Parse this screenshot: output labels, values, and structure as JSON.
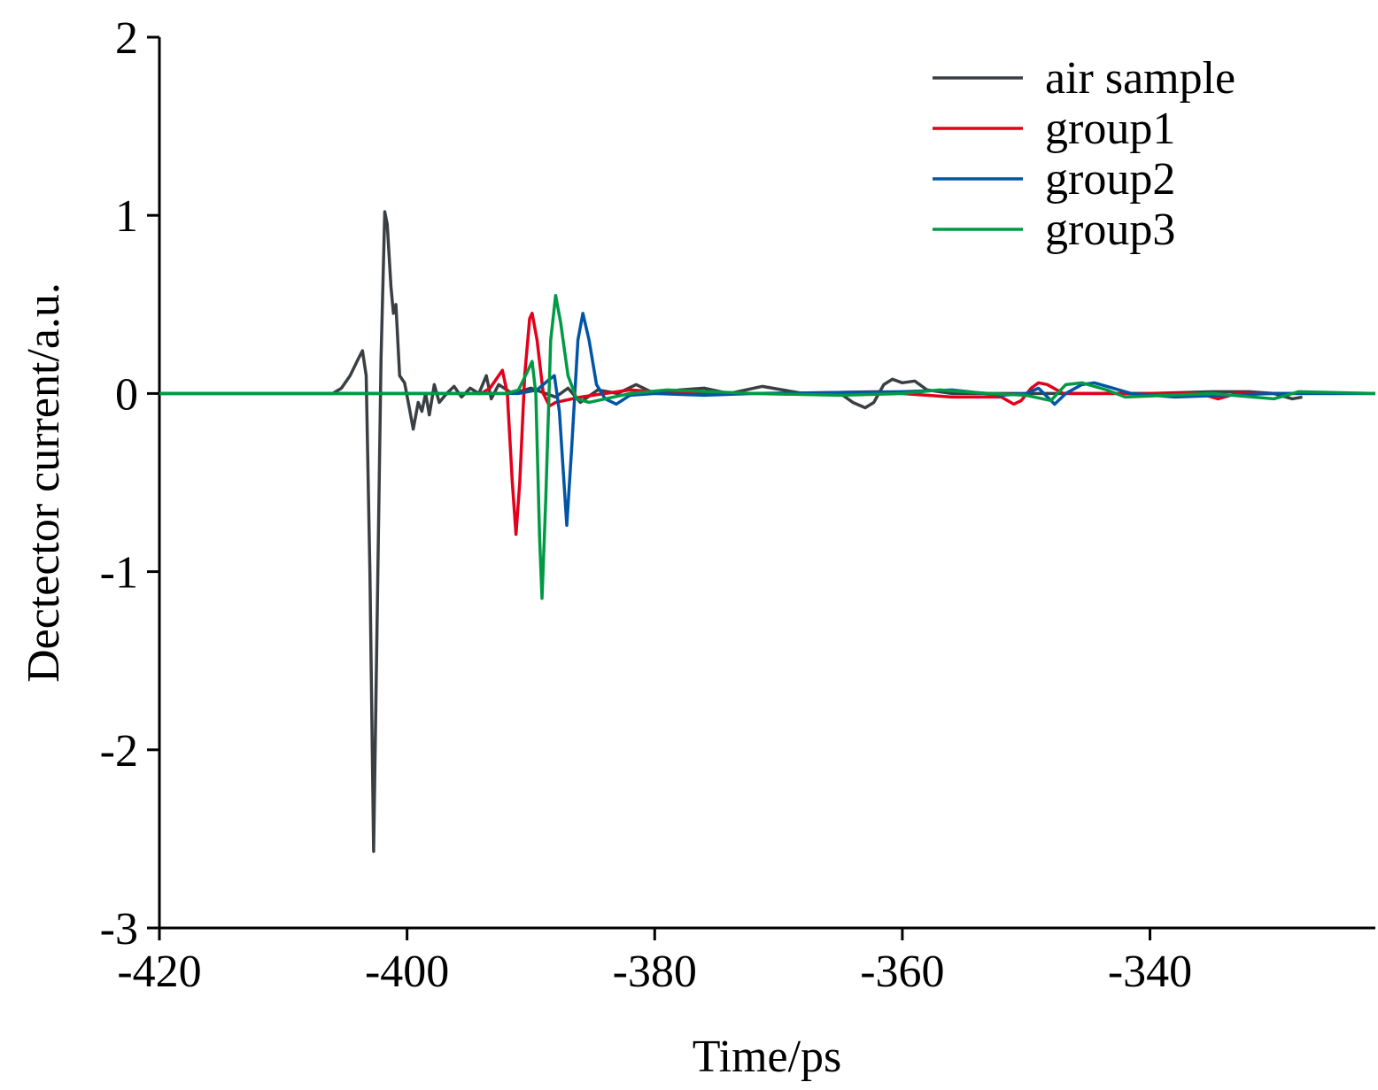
{
  "chart_data": {
    "type": "line",
    "xlabel": "Time/ps",
    "ylabel": "Dectector current/a.u.",
    "xlim": [
      -420,
      -321.8
    ],
    "xticks": [
      -420,
      -400,
      -380,
      -360,
      -340
    ],
    "ylim": [
      -3,
      2
    ],
    "yticks": [
      -3,
      -2,
      -1,
      0,
      1,
      2
    ],
    "legend": "upper right",
    "series": [
      {
        "name": "air sample",
        "color": "#3a3f44",
        "x": [
          -420,
          -406,
          -405.3,
          -404.6,
          -403.9,
          -403.6,
          -403.3,
          -403.0,
          -402.7,
          -402.4,
          -402.1,
          -401.8,
          -401.6,
          -401.3,
          -401.1,
          -400.9,
          -400.6,
          -400.2,
          -399.9,
          -399.5,
          -399.1,
          -398.8,
          -398.5,
          -398.2,
          -397.8,
          -397.4,
          -396.8,
          -396.2,
          -395.6,
          -394.9,
          -394.2,
          -393.6,
          -393.2,
          -392.6,
          -391.5,
          -390,
          -388,
          -387,
          -386,
          -384.6,
          -383,
          -381.5,
          -380,
          -378,
          -376,
          -374,
          -371.3,
          -368,
          -365,
          -364,
          -363,
          -362.3,
          -361.5,
          -360.8,
          -360,
          -359,
          -358,
          -356,
          -350,
          -345,
          -340,
          -335,
          -332,
          -330,
          -328.5,
          -327.7
        ],
        "values": [
          0,
          0,
          0.03,
          0.1,
          0.2,
          0.24,
          0.1,
          -1.0,
          -2.57,
          -1.2,
          0.2,
          1.02,
          0.95,
          0.6,
          0.45,
          0.5,
          0.1,
          0.06,
          -0.05,
          -0.2,
          -0.05,
          -0.1,
          0.0,
          -0.12,
          0.05,
          -0.05,
          0.0,
          0.04,
          -0.02,
          0.03,
          0.0,
          0.1,
          -0.03,
          0.05,
          0.0,
          0.03,
          -0.02,
          0.03,
          -0.05,
          0.02,
          0.0,
          0.05,
          0.0,
          0.02,
          0.03,
          0.0,
          0.04,
          0.0,
          0.0,
          -0.05,
          -0.08,
          -0.05,
          0.05,
          0.08,
          0.06,
          0.07,
          0.02,
          0.0,
          0.0,
          0.0,
          0.0,
          0.01,
          0.01,
          0.0,
          -0.03,
          -0.02
        ]
      },
      {
        "name": "group1",
        "color": "#e2001a",
        "x": [
          -420,
          -394,
          -393.3,
          -392.6,
          -392.3,
          -391.9,
          -391.5,
          -391.2,
          -390.9,
          -390.5,
          -390.1,
          -389.9,
          -389.5,
          -389.0,
          -388.5,
          -388,
          -386,
          -384,
          -382,
          -378,
          -370,
          -362,
          -356,
          -352,
          -351,
          -350.4,
          -349.6,
          -349,
          -348.3,
          -347,
          -343,
          -336,
          -334.5,
          -333,
          -321.8
        ],
        "values": [
          0,
          0,
          0.03,
          0.1,
          0.13,
          0.0,
          -0.5,
          -0.79,
          -0.5,
          0.1,
          0.42,
          0.45,
          0.3,
          0.0,
          -0.07,
          -0.05,
          -0.02,
          0.0,
          0.02,
          0.0,
          0.0,
          0.01,
          -0.02,
          -0.02,
          -0.06,
          -0.04,
          0.03,
          0.06,
          0.05,
          0.0,
          0.0,
          0.0,
          -0.03,
          0.0,
          0
        ]
      },
      {
        "name": "group2",
        "color": "#0055a5",
        "x": [
          -420,
          -391,
          -389.5,
          -388.5,
          -388.1,
          -387.7,
          -387.1,
          -386.7,
          -386.2,
          -385.8,
          -385.3,
          -384.7,
          -384,
          -383.1,
          -382,
          -380,
          -376,
          -372,
          -360,
          -356,
          -352,
          -350,
          -349,
          -347.7,
          -346.8,
          -345.5,
          -344.5,
          -343,
          -341.5,
          -338,
          -330,
          -321.8
        ],
        "values": [
          0,
          0,
          0.02,
          0.08,
          0.1,
          -0.1,
          -0.74,
          -0.3,
          0.3,
          0.45,
          0.3,
          0.05,
          -0.03,
          -0.06,
          -0.01,
          0.0,
          -0.01,
          0.0,
          0.01,
          0.02,
          -0.01,
          0.0,
          0.03,
          -0.06,
          0.0,
          0.05,
          0.06,
          0.03,
          0.0,
          -0.02,
          0.0,
          0
        ]
      },
      {
        "name": "group3",
        "color": "#009a44",
        "x": [
          -420,
          -392,
          -391,
          -390.3,
          -389.9,
          -389.6,
          -389.3,
          -389.1,
          -388.8,
          -388.4,
          -388.0,
          -387.6,
          -387.0,
          -386.3,
          -385.3,
          -384,
          -382,
          -379,
          -372,
          -365,
          -360,
          -357,
          -353,
          -350,
          -348,
          -346.8,
          -345.5,
          -343.5,
          -342,
          -335,
          -330,
          -328,
          -321.8
        ],
        "values": [
          0,
          0,
          0.02,
          0.12,
          0.18,
          0.0,
          -0.8,
          -1.15,
          -0.6,
          0.3,
          0.55,
          0.4,
          0.1,
          -0.03,
          -0.05,
          -0.03,
          0.0,
          0.02,
          0.0,
          -0.01,
          0.0,
          0.02,
          0.0,
          -0.01,
          -0.04,
          0.05,
          0.06,
          0.02,
          -0.02,
          0.0,
          -0.03,
          0.01,
          0
        ]
      }
    ]
  }
}
